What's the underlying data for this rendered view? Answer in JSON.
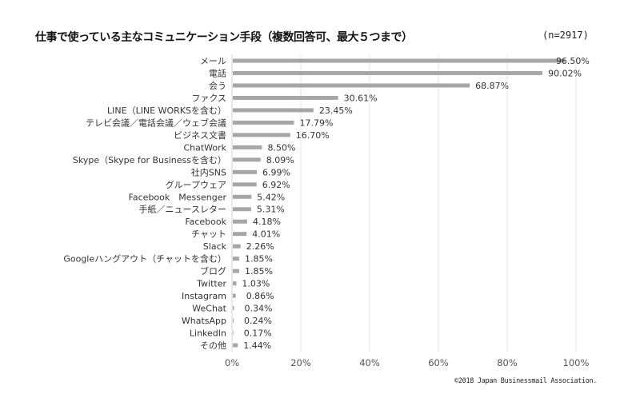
{
  "chart_data": {
    "type": "bar",
    "orientation": "horizontal",
    "title": "仕事で使っている主なコミュニケーション手段（複数回答可、最大５つまで）",
    "sample_size": "(n=2917)",
    "credit": "©2018 Japan Businessmail Association.",
    "categories": [
      "メール",
      "電話",
      "会う",
      "ファクス",
      "LINE（LINE WORKSを含む）",
      "テレビ会議／電話会議／ウェブ会議",
      "ビジネス文書",
      "ChatWork",
      "Skype（Skype for Businessを含む）",
      "社内SNS",
      "グループウェア",
      "Facebook　Messenger",
      "手紙／ニュースレター",
      "Facebook",
      "チャット",
      "Slack",
      "Googleハングアウト（チャットを含む）",
      "ブログ",
      "Twitter",
      "Instagram",
      "WeChat",
      "WhatsApp",
      "LinkedIn",
      "その他"
    ],
    "values": [
      96.5,
      90.02,
      68.87,
      30.61,
      23.45,
      17.79,
      16.7,
      8.5,
      8.09,
      6.99,
      6.92,
      5.42,
      5.31,
      4.18,
      4.01,
      2.26,
      1.85,
      1.85,
      1.03,
      0.86,
      0.34,
      0.24,
      0.17,
      1.44
    ],
    "value_labels": [
      "96.50%",
      "90.02%",
      "68.87%",
      "30.61%",
      "23.45%",
      "17.79%",
      "16.70%",
      "8.50%",
      "8.09%",
      "6.99%",
      "6.92%",
      "5.42%",
      "5.31%",
      "4.18%",
      "4.01%",
      "2.26%",
      "1.85%",
      "1.85%",
      "1.03%",
      "0.86%",
      "0.34%",
      "0.24%",
      "0.17%",
      "1.44%"
    ],
    "xlim": [
      0,
      100
    ],
    "xticks": [
      "0%",
      "20%",
      "40%",
      "60%",
      "80%",
      "100%"
    ],
    "grid": true,
    "bar_color": "#a6a6a6"
  }
}
